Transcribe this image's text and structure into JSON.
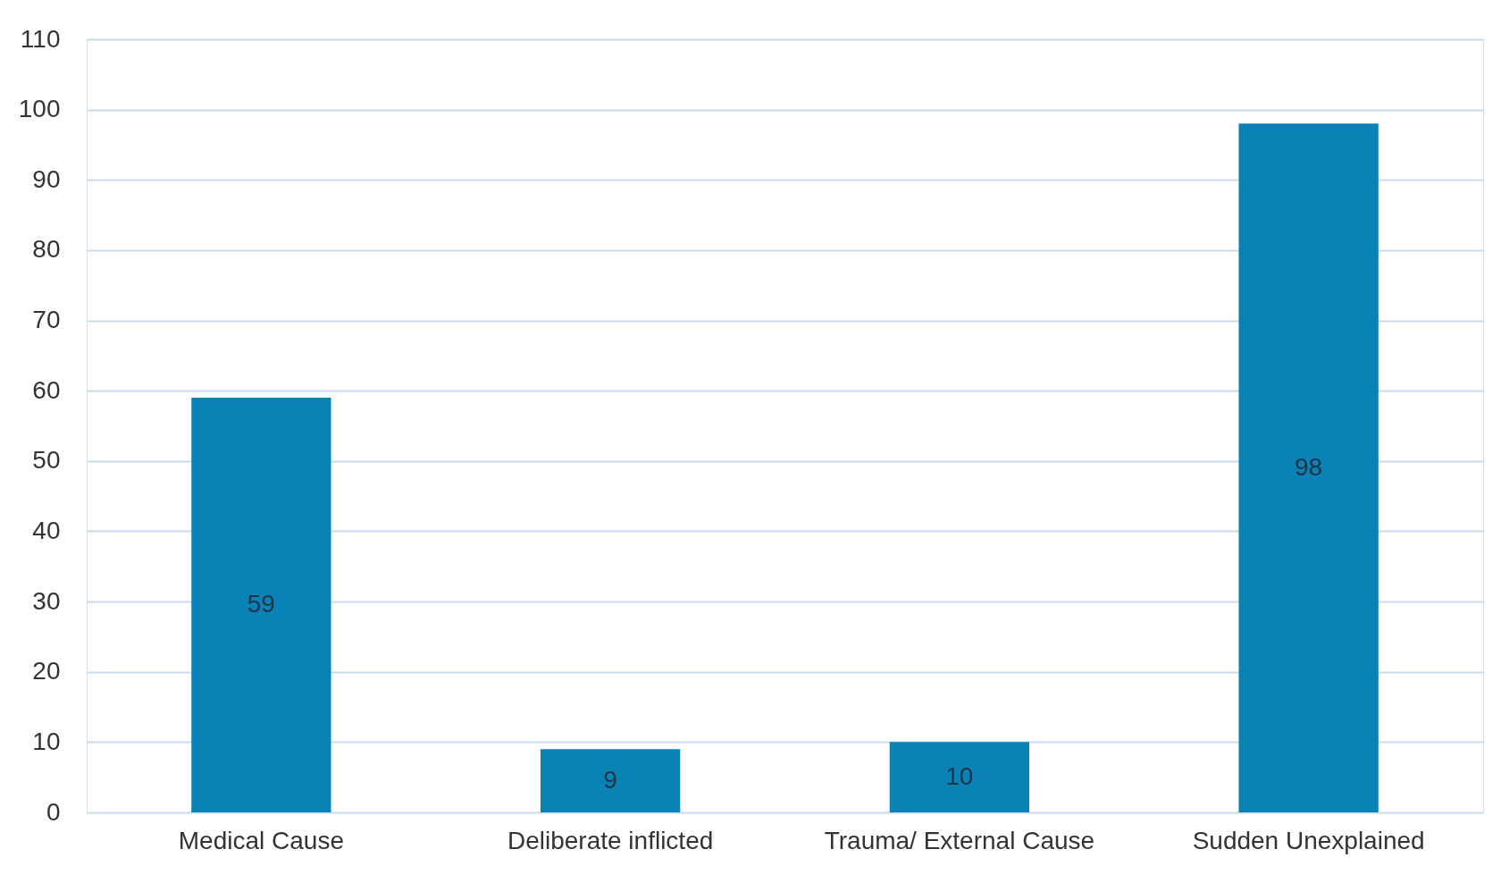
{
  "chart_data": {
    "type": "bar",
    "categories": [
      "Medical Cause",
      "Deliberate inflicted",
      "Trauma/ External Cause",
      "Sudden Unexplained"
    ],
    "values": [
      59,
      9,
      10,
      98
    ],
    "color": "#0a82b6",
    "ylim": [
      0,
      110
    ],
    "yticks": [
      0,
      10,
      20,
      30,
      40,
      50,
      60,
      70,
      80,
      90,
      100,
      110
    ],
    "grid": "y",
    "data_labels": true
  }
}
